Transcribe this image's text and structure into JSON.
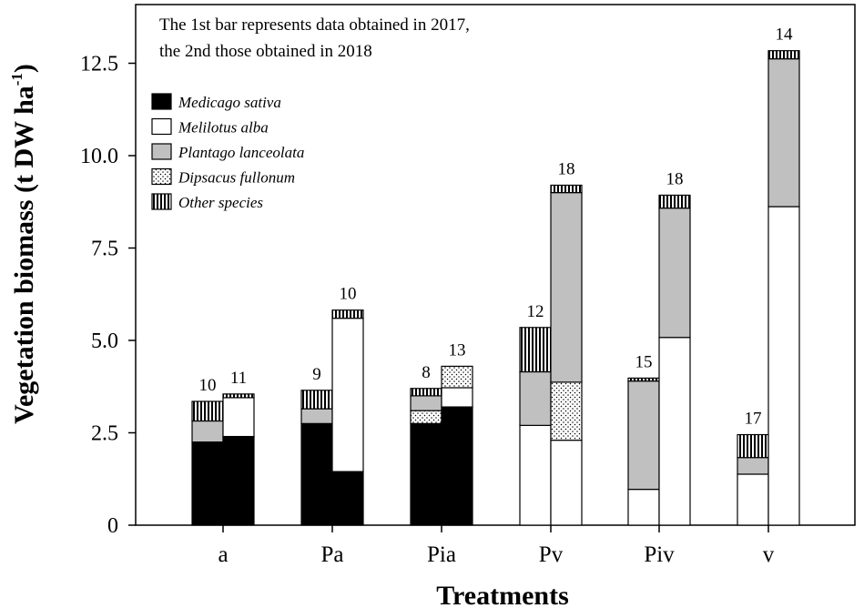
{
  "chart_data": {
    "type": "stacked-bar",
    "xlabel": "Treatments",
    "ylabel": "Vegetation biomass (t DW ha",
    "ylabel_sup": "-1",
    "ylabel_close": ")",
    "ylim": [
      0,
      14
    ],
    "yticks": [
      "0",
      "2.5",
      "5.0",
      "7.5",
      "10.0",
      "12.5"
    ],
    "ytick_values": [
      0,
      2.5,
      5.0,
      7.5,
      10.0,
      12.5
    ],
    "note": [
      "The 1st bar represents data obtained in 2017,",
      "the 2nd  those obtained in 2018"
    ],
    "legend": [
      {
        "key": "medicago",
        "label": "Medicago sativa",
        "fill": "#000000"
      },
      {
        "key": "melilotus",
        "label": "Melilotus alba",
        "fill": "#ffffff"
      },
      {
        "key": "plantago",
        "label": "Plantago lanceolata",
        "fill": "#c0c0c0"
      },
      {
        "key": "dipsacus",
        "label": "Dipsacus fullonum",
        "fill": "dots"
      },
      {
        "key": "other",
        "label": "Other species",
        "fill": "vstripes"
      }
    ],
    "stack_order": [
      "medicago",
      "melilotus",
      "dipsacus",
      "plantago",
      "other"
    ],
    "groups": [
      {
        "category": "a",
        "bars": [
          {
            "year": "2017",
            "count": "10",
            "values": {
              "medicago": 2.25,
              "melilotus": 0,
              "dipsacus": 0,
              "plantago": 0.57,
              "other": 0.53
            }
          },
          {
            "year": "2018",
            "count": "11",
            "values": {
              "medicago": 2.4,
              "melilotus": 1.05,
              "dipsacus": 0,
              "plantago": 0,
              "other": 0.1
            }
          }
        ]
      },
      {
        "category": "Pa",
        "bars": [
          {
            "year": "2017",
            "count": "9",
            "values": {
              "medicago": 2.75,
              "melilotus": 0,
              "dipsacus": 0,
              "plantago": 0.4,
              "other": 0.5
            }
          },
          {
            "year": "2018",
            "count": "10",
            "values": {
              "medicago": 1.45,
              "melilotus": 4.15,
              "dipsacus": 0,
              "plantago": 0,
              "other": 0.22
            }
          }
        ]
      },
      {
        "category": "Pia",
        "bars": [
          {
            "year": "2017",
            "count": "8",
            "values": {
              "medicago": 2.75,
              "melilotus": 0,
              "dipsacus": 0.35,
              "plantago": 0.4,
              "other": 0.2
            }
          },
          {
            "year": "2018",
            "count": "13",
            "values": {
              "medicago": 3.2,
              "melilotus": 0.52,
              "dipsacus": 0.58,
              "plantago": 0,
              "other": 0
            }
          }
        ]
      },
      {
        "category": "Pv",
        "bars": [
          {
            "year": "2017",
            "count": "12",
            "values": {
              "medicago": 0,
              "melilotus": 2.7,
              "dipsacus": 0,
              "plantago": 1.45,
              "other": 1.2
            }
          },
          {
            "year": "2018",
            "count": "18",
            "values": {
              "medicago": 0,
              "melilotus": 2.3,
              "dipsacus": 1.57,
              "plantago": 5.13,
              "other": 0.2
            }
          }
        ]
      },
      {
        "category": "Piv",
        "bars": [
          {
            "year": "2017",
            "count": "15",
            "values": {
              "medicago": 0,
              "melilotus": 0.97,
              "dipsacus": 0,
              "plantago": 2.93,
              "other": 0.08
            }
          },
          {
            "year": "2018",
            "count": "18",
            "values": {
              "medicago": 0,
              "melilotus": 5.08,
              "dipsacus": 0,
              "plantago": 3.5,
              "other": 0.35
            }
          }
        ]
      },
      {
        "category": "v",
        "bars": [
          {
            "year": "2017",
            "count": "17",
            "values": {
              "medicago": 0,
              "melilotus": 1.38,
              "dipsacus": 0,
              "plantago": 0.45,
              "other": 0.62
            }
          },
          {
            "year": "2018",
            "count": "14",
            "values": {
              "medicago": 0,
              "melilotus": 8.62,
              "dipsacus": 0,
              "plantago": 4.0,
              "other": 0.22
            }
          }
        ]
      }
    ]
  }
}
